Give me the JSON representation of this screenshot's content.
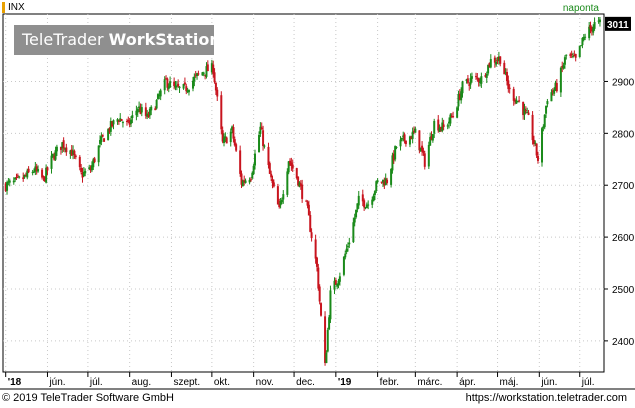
{
  "header": {
    "symbol": "INX",
    "frequency": "naponta",
    "watermark_prefix": "TeleTrader",
    "watermark_bold": "WorkStation"
  },
  "footer": {
    "copyright": "© 2019 TeleTrader Software GmbH",
    "url": "https://workstation.teletrader.com"
  },
  "colors": {
    "up": "#1a8a1a",
    "down": "#c8141e",
    "grid": "#c8c8c8",
    "watermark": "#8f8f8f"
  },
  "chart_data": {
    "type": "candlestick",
    "title": "",
    "xlabel": "",
    "ylabel": "",
    "ylim": [
      2340,
      3030
    ],
    "y_ticks": [
      2400,
      2500,
      2600,
      2700,
      2800,
      2900
    ],
    "last_value": "3011",
    "grid": true,
    "x_ticks": [
      "'18",
      "jún.",
      "júl.",
      "aug.",
      "szept.",
      "okt.",
      "nov.",
      "dec.",
      "'19",
      "febr.",
      "márc.",
      "ápr.",
      "máj.",
      "jún.",
      "júl."
    ],
    "x_tick_dates": [
      "2018-05-01",
      "2018-06-01",
      "2018-07-01",
      "2018-08-01",
      "2018-09-01",
      "2018-10-01",
      "2018-11-01",
      "2018-12-01",
      "2019-01-01",
      "2019-02-01",
      "2019-03-01",
      "2019-04-01",
      "2019-05-01",
      "2019-06-01",
      "2019-07-01"
    ],
    "close_series": [
      [
        "2018-05-01",
        2700
      ],
      [
        "2018-05-08",
        2705
      ],
      [
        "2018-05-15",
        2715
      ],
      [
        "2018-05-22",
        2730
      ],
      [
        "2018-05-29",
        2710
      ],
      [
        "2018-06-05",
        2755
      ],
      [
        "2018-06-12",
        2780
      ],
      [
        "2018-06-19",
        2765
      ],
      [
        "2018-06-26",
        2720
      ],
      [
        "2018-07-03",
        2730
      ],
      [
        "2018-07-10",
        2780
      ],
      [
        "2018-07-17",
        2810
      ],
      [
        "2018-07-24",
        2830
      ],
      [
        "2018-07-31",
        2815
      ],
      [
        "2018-08-07",
        2850
      ],
      [
        "2018-08-14",
        2830
      ],
      [
        "2018-08-21",
        2860
      ],
      [
        "2018-08-28",
        2900
      ],
      [
        "2018-09-04",
        2885
      ],
      [
        "2018-09-11",
        2885
      ],
      [
        "2018-09-18",
        2905
      ],
      [
        "2018-09-25",
        2920
      ],
      [
        "2018-10-02",
        2925
      ],
      [
        "2018-10-09",
        2780
      ],
      [
        "2018-10-16",
        2805
      ],
      [
        "2018-10-23",
        2705
      ],
      [
        "2018-10-30",
        2720
      ],
      [
        "2018-11-06",
        2810
      ],
      [
        "2018-11-13",
        2720
      ],
      [
        "2018-11-20",
        2650
      ],
      [
        "2018-11-27",
        2750
      ],
      [
        "2018-12-04",
        2710
      ],
      [
        "2018-12-11",
        2650
      ],
      [
        "2018-12-18",
        2540
      ],
      [
        "2018-12-24",
        2350
      ],
      [
        "2018-12-28",
        2490
      ],
      [
        "2019-01-04",
        2530
      ],
      [
        "2019-01-11",
        2595
      ],
      [
        "2019-01-18",
        2670
      ],
      [
        "2019-01-25",
        2665
      ],
      [
        "2019-02-01",
        2705
      ],
      [
        "2019-02-08",
        2710
      ],
      [
        "2019-02-15",
        2775
      ],
      [
        "2019-02-22",
        2790
      ],
      [
        "2019-03-01",
        2800
      ],
      [
        "2019-03-08",
        2745
      ],
      [
        "2019-03-15",
        2820
      ],
      [
        "2019-03-22",
        2810
      ],
      [
        "2019-03-29",
        2835
      ],
      [
        "2019-04-05",
        2890
      ],
      [
        "2019-04-12",
        2905
      ],
      [
        "2019-04-19",
        2905
      ],
      [
        "2019-04-26",
        2940
      ],
      [
        "2019-05-03",
        2945
      ],
      [
        "2019-05-10",
        2880
      ],
      [
        "2019-05-17",
        2860
      ],
      [
        "2019-05-24",
        2825
      ],
      [
        "2019-05-31",
        2750
      ],
      [
        "2019-06-07",
        2870
      ],
      [
        "2019-06-14",
        2890
      ],
      [
        "2019-06-21",
        2950
      ],
      [
        "2019-06-28",
        2940
      ],
      [
        "2019-07-05",
        2990
      ],
      [
        "2019-07-12",
        3010
      ],
      [
        "2019-07-16",
        3011
      ]
    ]
  }
}
